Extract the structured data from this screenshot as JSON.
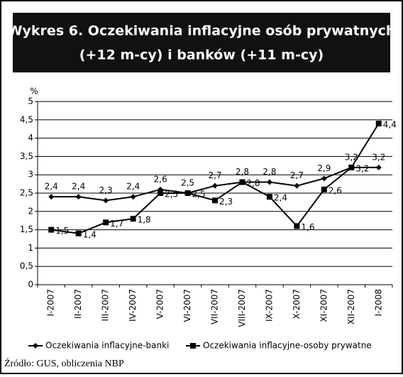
{
  "chart_data": {
    "type": "line",
    "title": [
      "Wykres 6. Oczekiwania inflacyjne osób prywatnych",
      "(+12 m-cy) i banków (+11 m-cy)"
    ],
    "y_label": "%",
    "categories": [
      "I-2007",
      "II-2007",
      "III-2007",
      "IV-2007",
      "V-2007",
      "VI-2007",
      "VII-2007",
      "VIII-2007",
      "IX-2007",
      "X-2007",
      "XI-2007",
      "XII-2007",
      "I-2008"
    ],
    "series": [
      {
        "name": "Oczekiwania inflacyjne-banki",
        "color": "#000000",
        "marker": "diamond",
        "values": [
          2.4,
          2.4,
          2.3,
          2.4,
          2.6,
          2.5,
          2.7,
          2.8,
          2.8,
          2.7,
          2.9,
          3.2,
          3.2
        ],
        "value_labels": [
          "2,4",
          "2,4",
          "2,3",
          "2,4",
          "2,6",
          "2,5",
          "2,7",
          "2,8",
          "2,8",
          "2,7",
          "2,9",
          "3,2",
          "3,2"
        ]
      },
      {
        "name": "Oczekiwania inflacyjne-osoby prywatne",
        "color": "#000000",
        "marker": "square",
        "values": [
          1.5,
          1.4,
          1.7,
          1.8,
          2.5,
          2.5,
          2.3,
          2.8,
          2.4,
          1.6,
          2.6,
          3.2,
          4.4
        ],
        "value_labels": [
          "1,5",
          "1,4",
          "1,7",
          "1,8",
          "2,5",
          "2,5",
          "2,3",
          "2,8",
          "2,4",
          "1,6",
          "2,6",
          "3,2",
          "4,4"
        ]
      }
    ],
    "ylim": [
      0,
      5
    ],
    "yticks": [
      0,
      {
        "value": 0.5,
        "label": "0,5"
      },
      1,
      {
        "value": 1.5,
        "label": "1,5"
      },
      2,
      {
        "value": 2.5,
        "label": "2,5"
      },
      3,
      {
        "value": 3.5,
        "label": "3,5"
      },
      4,
      {
        "value": 4.5,
        "label": "4,5"
      },
      5
    ],
    "grid": true,
    "source": "Źródło: GUS, obliczenia NBP"
  }
}
